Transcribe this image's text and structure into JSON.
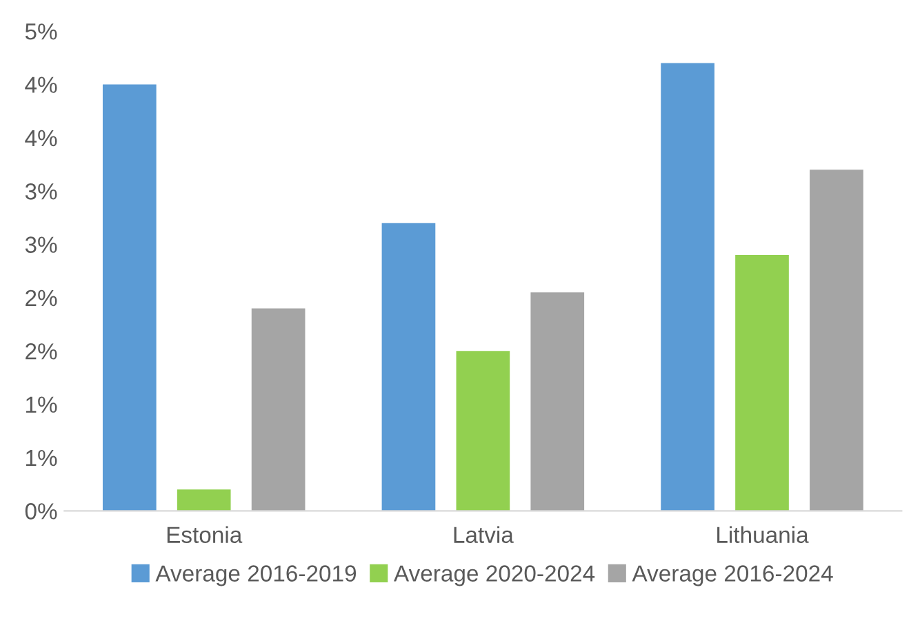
{
  "chart_data": {
    "type": "bar",
    "categories": [
      "Estonia",
      "Latvia",
      "Lithuania"
    ],
    "series": [
      {
        "name": "Average 2016-2019",
        "color": "#5b9bd5",
        "values": [
          4.0,
          2.7,
          4.2
        ]
      },
      {
        "name": "Average 2020-2024",
        "color": "#92d050",
        "values": [
          0.2,
          1.5,
          2.4
        ]
      },
      {
        "name": "Average 2016-2024",
        "color": "#a5a5a5",
        "values": [
          1.9,
          2.05,
          3.2
        ]
      }
    ],
    "ylim": [
      0,
      4.5
    ],
    "yticks": [
      {
        "value": 0,
        "label": "0%"
      },
      {
        "value": 0.5,
        "label": "1%"
      },
      {
        "value": 1,
        "label": "1%"
      },
      {
        "value": 1.5,
        "label": "2%"
      },
      {
        "value": 2,
        "label": "2%"
      },
      {
        "value": 2.5,
        "label": "3%"
      },
      {
        "value": 3,
        "label": "3%"
      },
      {
        "value": 3.5,
        "label": "4%"
      },
      {
        "value": 4,
        "label": "4%"
      },
      {
        "value": 4.5,
        "label": "5%"
      }
    ],
    "grid": false,
    "legend": "bottom"
  }
}
